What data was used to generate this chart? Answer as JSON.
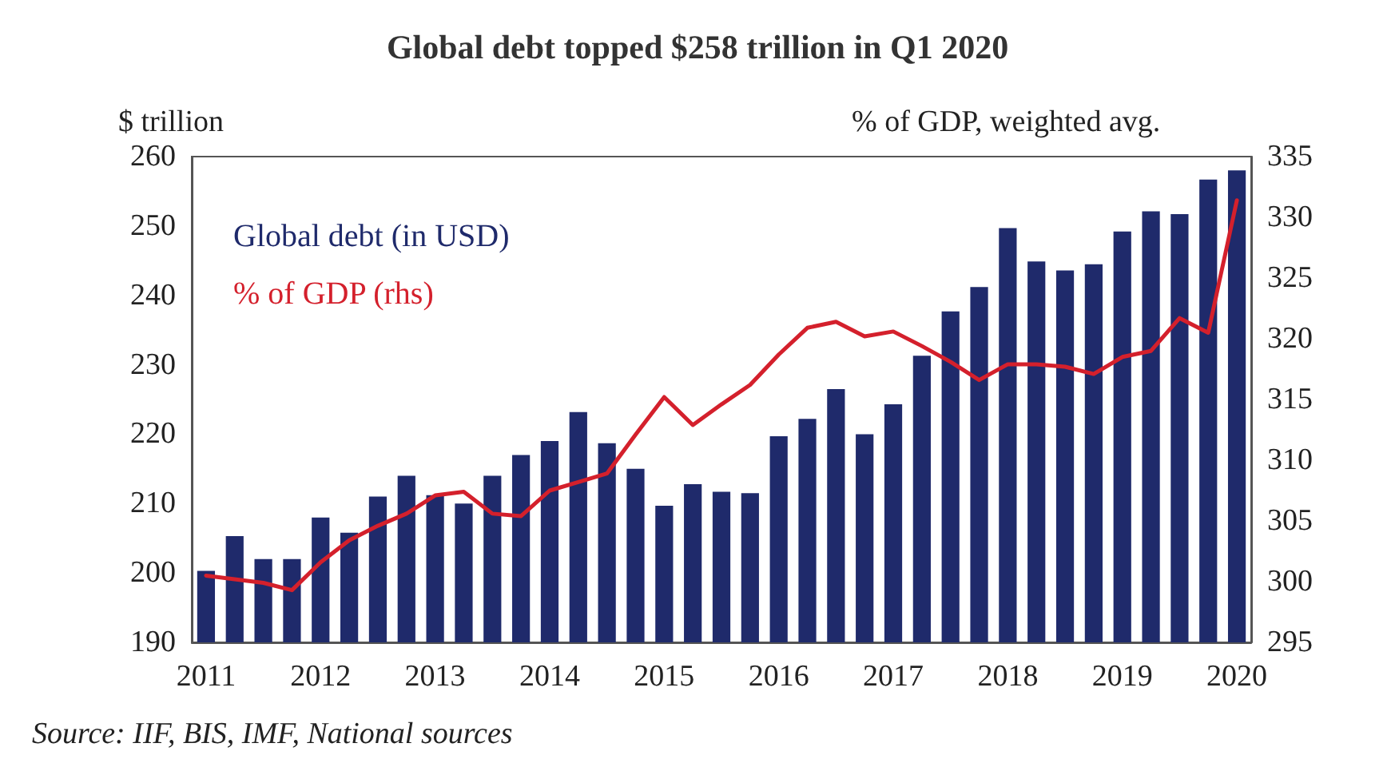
{
  "chart_data": {
    "type": "bar",
    "title": "Global debt topped $258 trillion in Q1 2020",
    "ylabel": "$ trillion",
    "y2label": "% of GDP, weighted avg.",
    "categories": [
      "2011",
      null,
      null,
      null,
      "2012",
      null,
      null,
      null,
      "2013",
      null,
      null,
      null,
      "2014",
      null,
      null,
      null,
      "2015",
      null,
      null,
      null,
      "2016",
      null,
      null,
      null,
      "2017",
      null,
      null,
      null,
      "2018",
      null,
      null,
      null,
      "2019",
      null,
      null,
      null,
      "2020"
    ],
    "series": [
      {
        "name": "Global debt (in USD)",
        "color": "#1f2a6b",
        "values": [
          200.3,
          205.3,
          202,
          202,
          208,
          205.8,
          211,
          214,
          211.2,
          210,
          214,
          217,
          219,
          223.2,
          218.7,
          215,
          209.7,
          212.8,
          211.7,
          211.5,
          219.7,
          222.2,
          226.5,
          220,
          224.3,
          231.3,
          237.7,
          241.2,
          249.7,
          244.9,
          243.6,
          244.5,
          249.2,
          252.1,
          251.7,
          256.7,
          258
        ]
      },
      {
        "name": "% of GDP (rhs)",
        "type": "line",
        "axis": "y2",
        "color": "#d4202c",
        "values": [
          300.5,
          300.2,
          299.9,
          299.3,
          301.6,
          303.4,
          304.6,
          305.6,
          307.1,
          307.4,
          305.6,
          305.4,
          307.5,
          308.2,
          308.9,
          312.1,
          315.2,
          312.9,
          314.6,
          316.2,
          318.7,
          320.9,
          321.4,
          320.2,
          320.6,
          319.4,
          318.1,
          316.6,
          317.9,
          317.9,
          317.7,
          317.1,
          318.5,
          319,
          321.7,
          320.5,
          331.4
        ]
      }
    ],
    "ylim": [
      190,
      260
    ],
    "yticks": [
      190,
      200,
      210,
      220,
      230,
      240,
      250,
      260
    ],
    "y2lim": [
      295,
      335
    ],
    "y2ticks": [
      295,
      300,
      305,
      310,
      315,
      320,
      325,
      330,
      335
    ],
    "grid": false,
    "legend": "top left",
    "marker": "none",
    "line_style": "solid",
    "annotations": [
      "Source: IIF, BIS, IMF, National sources"
    ]
  }
}
